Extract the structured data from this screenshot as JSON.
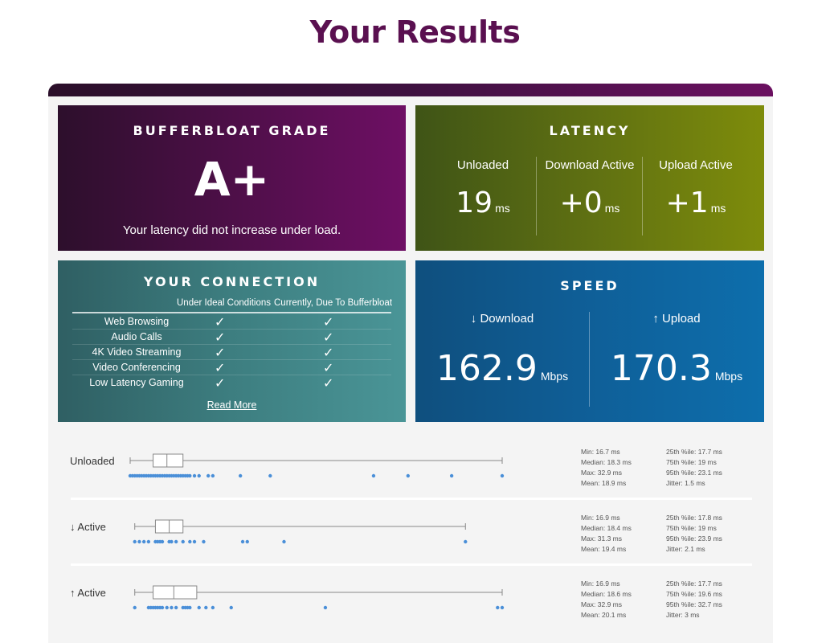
{
  "page_title": "Your Results",
  "grade": {
    "title": "BUFFERBLOAT GRADE",
    "value": "A+",
    "description": "Your latency did not increase under load."
  },
  "latency": {
    "title": "LATENCY",
    "columns": [
      {
        "label": "Unloaded",
        "value": "19",
        "unit": "ms"
      },
      {
        "label": "Download Active",
        "value": "+0",
        "unit": "ms"
      },
      {
        "label": "Upload Active",
        "value": "+1",
        "unit": "ms"
      }
    ]
  },
  "connection": {
    "title": "YOUR CONNECTION",
    "headers": [
      "Under Ideal Conditions",
      "Currently, Due To Bufferbloat"
    ],
    "rows": [
      {
        "name": "Web Browsing",
        "ideal": "✓",
        "current": "✓"
      },
      {
        "name": "Audio Calls",
        "ideal": "✓",
        "current": "✓"
      },
      {
        "name": "4K Video Streaming",
        "ideal": "✓",
        "current": "✓"
      },
      {
        "name": "Video Conferencing",
        "ideal": "✓",
        "current": "✓"
      },
      {
        "name": "Low Latency Gaming",
        "ideal": "✓",
        "current": "✓"
      }
    ],
    "read_more": "Read More"
  },
  "speed": {
    "title": "SPEED",
    "download": {
      "label": "↓ Download",
      "value": "162.9",
      "unit": "Mbps"
    },
    "upload": {
      "label": "↑ Upload",
      "value": "170.3",
      "unit": "Mbps"
    }
  },
  "distributions": [
    {
      "label": "Unloaded",
      "min": 16.7,
      "q1": 17.7,
      "median": 18.3,
      "q3": 19,
      "max": 32.9,
      "points": [
        16.7,
        16.8,
        16.9,
        17.0,
        17.1,
        17.2,
        17.3,
        17.4,
        17.5,
        17.6,
        17.7,
        17.8,
        17.9,
        18.0,
        18.1,
        18.2,
        18.3,
        18.4,
        18.5,
        18.6,
        18.7,
        18.8,
        18.9,
        19.0,
        19.1,
        19.2,
        19.3,
        19.5,
        19.7,
        20.1,
        20.3,
        21.5,
        22.8,
        27.3,
        28.8,
        30.7,
        32.9
      ],
      "stats_left": [
        "Min: 16.7 ms",
        "Median: 18.3 ms",
        "Max: 32.9 ms",
        "Mean: 18.9 ms"
      ],
      "stats_right": [
        "25th %ile: 17.7 ms",
        "75th %ile: 19 ms",
        "95th %ile: 23.1 ms",
        "Jitter: 1.5 ms"
      ]
    },
    {
      "label": "↓ Active",
      "min": 16.9,
      "q1": 17.8,
      "median": 18.4,
      "q3": 19,
      "max": 31.3,
      "points": [
        16.9,
        17.1,
        17.3,
        17.5,
        17.8,
        17.9,
        18.0,
        18.1,
        18.4,
        18.5,
        18.7,
        19.0,
        19.3,
        19.5,
        19.9,
        21.6,
        21.8,
        23.4,
        31.3
      ],
      "stats_left": [
        "Min: 16.9 ms",
        "Median: 18.4 ms",
        "Max: 31.3 ms",
        "Mean: 19.4 ms"
      ],
      "stats_right": [
        "25th %ile: 17.8 ms",
        "75th %ile: 19 ms",
        "95th %ile: 23.9 ms",
        "Jitter: 2.1 ms"
      ]
    },
    {
      "label": "↑ Active",
      "min": 16.9,
      "q1": 17.7,
      "median": 18.6,
      "q3": 19.6,
      "max": 32.9,
      "points": [
        16.9,
        17.5,
        17.6,
        17.7,
        17.8,
        17.9,
        18.0,
        18.1,
        18.3,
        18.5,
        18.7,
        19.0,
        19.1,
        19.2,
        19.3,
        19.7,
        20.0,
        20.3,
        21.1,
        25.2,
        32.7,
        32.9
      ],
      "stats_left": [
        "Min: 16.9 ms",
        "Median: 18.6 ms",
        "Max: 32.9 ms",
        "Mean: 20.1 ms"
      ],
      "stats_right": [
        "25th %ile: 17.7 ms",
        "75th %ile: 19.6 ms",
        "95th %ile: 32.7 ms",
        "Jitter: 3 ms"
      ]
    }
  ],
  "colors": {
    "title": "#5a1050",
    "dot": "#4a8fd8",
    "box_stroke": "#888888"
  }
}
